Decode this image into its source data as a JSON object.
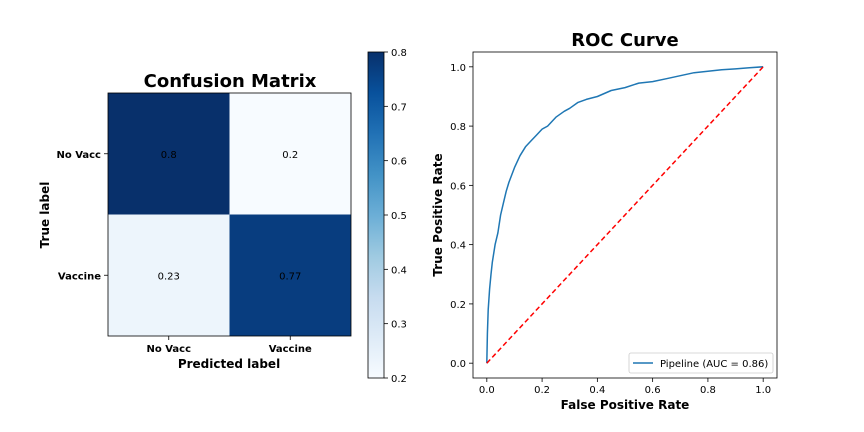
{
  "colors": {
    "cmap_low": "#f7fbff",
    "cmap_high": "#08306b",
    "roc_line": "#1f77b4",
    "diagonal": "#ff0000"
  },
  "chart_data": [
    {
      "type": "heatmap",
      "title": "Confusion Matrix",
      "xlabel": "Predicted label",
      "ylabel": "True label",
      "x_categories": [
        "No Vacc",
        "Vaccine"
      ],
      "y_categories": [
        "No Vacc",
        "Vaccine"
      ],
      "values": [
        [
          0.8,
          0.2
        ],
        [
          0.23,
          0.77
        ]
      ],
      "value_labels": [
        [
          "0.8",
          "0.2"
        ],
        [
          "0.23",
          "0.77"
        ]
      ],
      "colorbar": {
        "cmap": "Blues",
        "range": [
          0.2,
          0.8
        ],
        "ticks": [
          0.2,
          0.3,
          0.4,
          0.5,
          0.6,
          0.7,
          0.8
        ],
        "tick_labels": [
          "0.2",
          "0.3",
          "0.4",
          "0.5",
          "0.6",
          "0.7",
          "0.8"
        ]
      }
    },
    {
      "type": "line",
      "title": "ROC Curve",
      "xlabel": "False Positive Rate",
      "ylabel": "True Positive Rate",
      "xlim": [
        -0.05,
        1.05
      ],
      "ylim": [
        -0.05,
        1.05
      ],
      "xticks": [
        "0.0",
        "0.2",
        "0.4",
        "0.6",
        "0.8",
        "1.0"
      ],
      "yticks": [
        "0.0",
        "0.2",
        "0.4",
        "0.6",
        "0.8",
        "1.0"
      ],
      "legend_position": "lower-right",
      "series": [
        {
          "name": "Pipeline (AUC = 0.86)",
          "style": "solid",
          "x": [
            0,
            0.002,
            0.005,
            0.01,
            0.015,
            0.02,
            0.03,
            0.04,
            0.05,
            0.06,
            0.07,
            0.08,
            0.1,
            0.12,
            0.14,
            0.16,
            0.18,
            0.2,
            0.22,
            0.25,
            0.28,
            0.3,
            0.33,
            0.36,
            0.4,
            0.45,
            0.5,
            0.55,
            0.6,
            0.65,
            0.7,
            0.75,
            0.8,
            0.85,
            0.9,
            0.95,
            1.0
          ],
          "y": [
            0,
            0.1,
            0.18,
            0.25,
            0.3,
            0.34,
            0.4,
            0.44,
            0.5,
            0.54,
            0.58,
            0.61,
            0.66,
            0.7,
            0.73,
            0.75,
            0.77,
            0.79,
            0.8,
            0.83,
            0.85,
            0.86,
            0.88,
            0.89,
            0.9,
            0.92,
            0.93,
            0.945,
            0.95,
            0.96,
            0.97,
            0.98,
            0.985,
            0.99,
            0.993,
            0.997,
            1.0
          ]
        },
        {
          "name": "",
          "style": "dashed",
          "x": [
            0,
            1
          ],
          "y": [
            0,
            1
          ]
        }
      ]
    }
  ]
}
